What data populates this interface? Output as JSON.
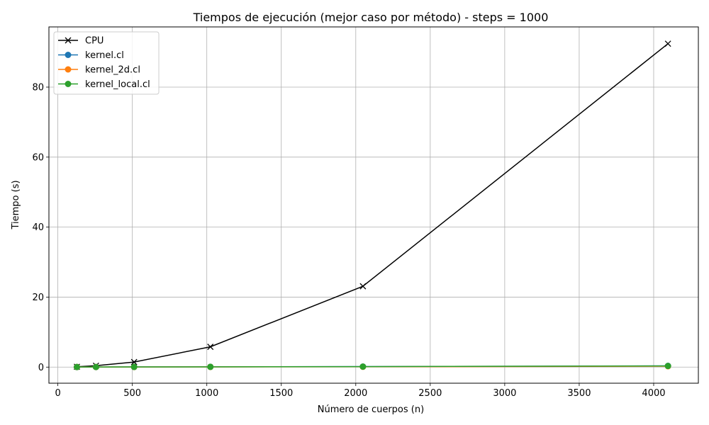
{
  "chart_data": {
    "type": "line",
    "title": "Tiempos de ejecución (mejor caso por método) - steps = 1000",
    "xlabel": "Número de cuerpos (n)",
    "ylabel": "Tiempo (s)",
    "xlim": [
      -60,
      4300
    ],
    "ylim": [
      -4.6,
      97.2
    ],
    "xticks": [
      "0",
      "500",
      "1000",
      "1500",
      "2000",
      "2500",
      "3000",
      "3500",
      "4000"
    ],
    "yticks": [
      "0",
      "20",
      "40",
      "60",
      "80"
    ],
    "grid": true,
    "legend_position": "top-left",
    "series": [
      {
        "name": "CPU",
        "color": "#000000",
        "marker": "x",
        "x": [
          128,
          256,
          512,
          1024,
          2048,
          4096
        ],
        "y": [
          0.1,
          0.4,
          1.45,
          5.8,
          23.1,
          92.4
        ]
      },
      {
        "name": "kernel.cl",
        "color": "#1f77b4",
        "marker": "o",
        "x": [
          128,
          256,
          512,
          1024,
          2048,
          4096
        ],
        "y": [
          0.02,
          0.03,
          0.05,
          0.08,
          0.15,
          0.35
        ]
      },
      {
        "name": "kernel_2d.cl",
        "color": "#ff7f0e",
        "marker": "o",
        "x": [
          128,
          256,
          512,
          1024,
          2048,
          4096
        ],
        "y": [
          0.02,
          0.03,
          0.04,
          0.06,
          0.1,
          0.25
        ]
      },
      {
        "name": "kernel_local.cl",
        "color": "#2ca02c",
        "marker": "o",
        "x": [
          128,
          256,
          512,
          1024,
          2048,
          4096
        ],
        "y": [
          0.02,
          0.03,
          0.05,
          0.07,
          0.14,
          0.33
        ]
      }
    ]
  }
}
